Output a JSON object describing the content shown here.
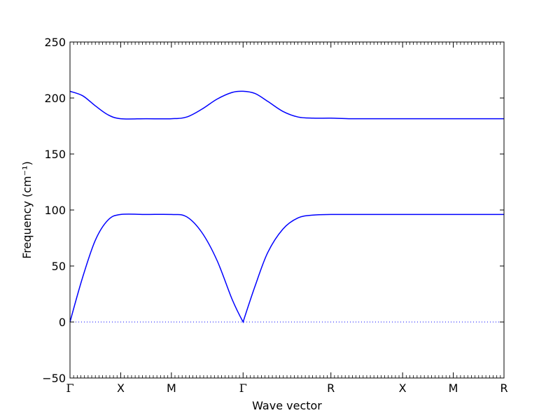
{
  "chart_data": {
    "type": "line",
    "title": "",
    "xlabel": "Wave vector",
    "ylabel": "Frequency (cm⁻¹)",
    "ylim": [
      -50,
      250
    ],
    "yticks": [
      "250",
      "200",
      "150",
      "100",
      "50",
      "0",
      "−50"
    ],
    "ytick_values": [
      250,
      200,
      150,
      100,
      50,
      0,
      -50
    ],
    "xticks": [
      {
        "label": "Γ",
        "pos": 0
      },
      {
        "label": "X",
        "pos": 1
      },
      {
        "label": "M",
        "pos": 2
      },
      {
        "label": "Γ",
        "pos": 3.4142
      },
      {
        "label": "R",
        "pos": 5.1463
      },
      {
        "label": "X",
        "pos": 6.5605
      },
      {
        "label": "M",
        "pos": 7.5605
      },
      {
        "label": "R",
        "pos": 8.5605
      }
    ],
    "xlim": [
      0,
      8.5605
    ],
    "zero_line": {
      "style": "dotted",
      "color": "#0000ff"
    },
    "colors": {
      "series": "#0000ff",
      "axes": "#000000"
    },
    "series": [
      {
        "x": [
          0,
          0.25,
          0.5,
          0.75,
          1.0,
          1.5,
          2.0,
          2.3,
          2.6,
          2.9,
          3.2,
          3.4142,
          3.65,
          3.9,
          4.2,
          4.5,
          4.8,
          5.1463,
          5.5,
          6.0,
          6.5605,
          7.0,
          7.5605,
          8.0,
          8.5605
        ],
        "y": [
          0,
          40,
          73,
          91,
          96,
          96,
          96,
          94,
          80,
          55,
          20,
          0,
          32,
          62,
          83,
          93,
          95.5,
          96,
          96,
          96,
          96,
          96,
          96,
          96,
          96
        ]
      },
      {
        "x": [
          0,
          0.25,
          0.5,
          0.75,
          1.0,
          1.5,
          2.0,
          2.3,
          2.6,
          2.9,
          3.2,
          3.4142,
          3.65,
          3.9,
          4.2,
          4.5,
          4.8,
          5.1463,
          5.5,
          6.0,
          6.5605,
          7.0,
          7.5605,
          8.0,
          8.5605
        ],
        "y": [
          206,
          202,
          193,
          185,
          181.5,
          181.5,
          181.5,
          183,
          190,
          199,
          205,
          206,
          204,
          197,
          188,
          183,
          182,
          182,
          181.5,
          181.5,
          181.5,
          181.5,
          181.5,
          181.5,
          181.5
        ]
      }
    ],
    "minor_ticks": true
  }
}
